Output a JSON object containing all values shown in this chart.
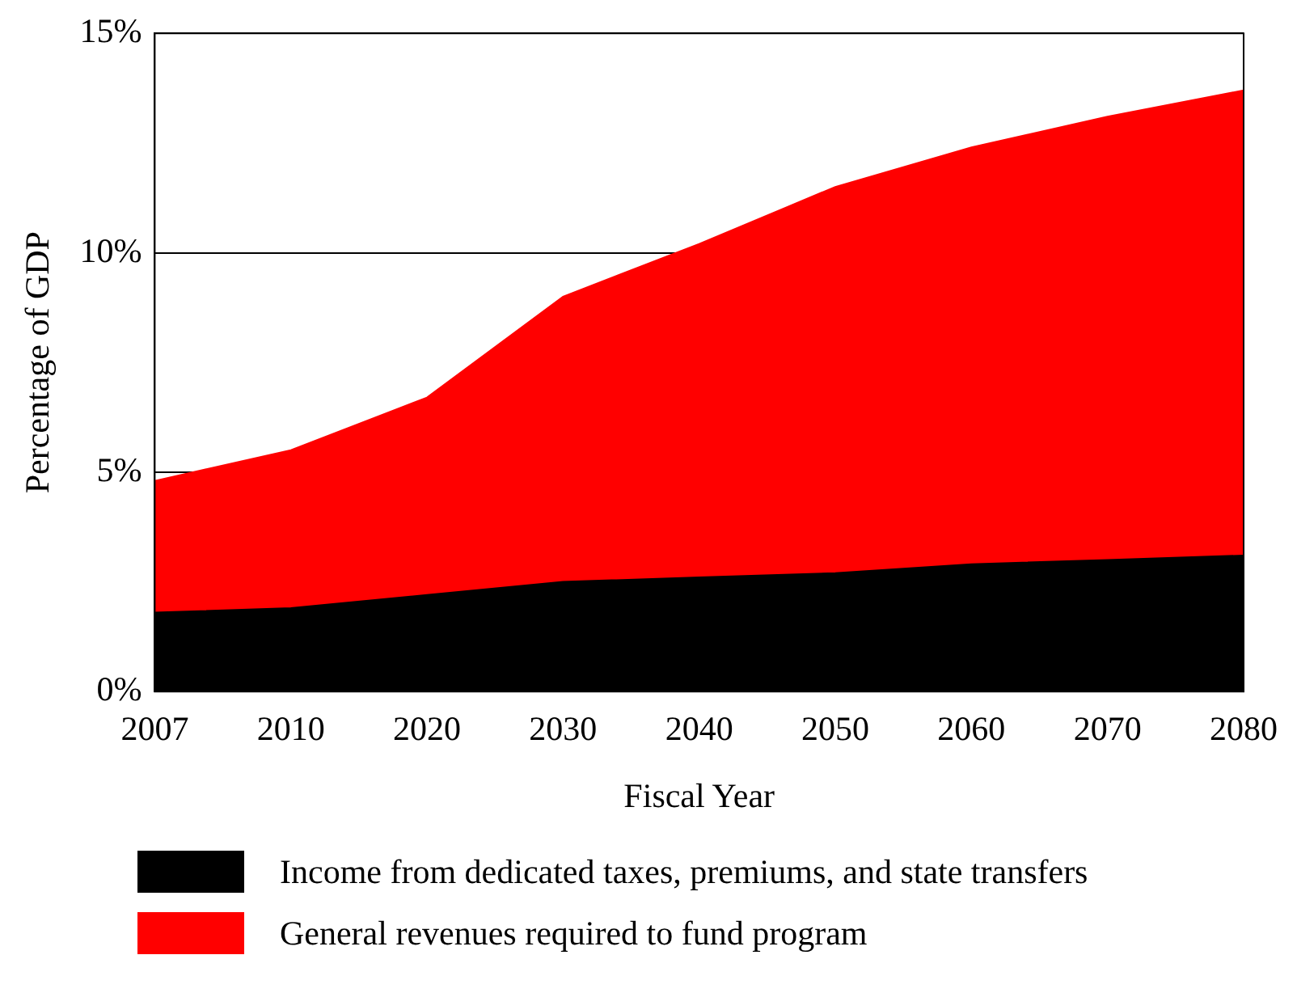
{
  "chart_data": {
    "type": "area",
    "stacked": true,
    "xlabel": "Fiscal Year",
    "ylabel": "Percentage of GDP",
    "categories": [
      "2007",
      "2010",
      "2020",
      "2030",
      "2040",
      "2050",
      "2060",
      "2070",
      "2080"
    ],
    "series": [
      {
        "name": "Income from dedicated taxes, premiums, and state transfers",
        "color": "#000000",
        "values": [
          1.8,
          1.9,
          2.2,
          2.5,
          2.6,
          2.7,
          2.9,
          3.0,
          3.1
        ]
      },
      {
        "name": "General revenues required to fund program",
        "color": "#ff0000",
        "values": [
          3.0,
          3.6,
          4.5,
          6.5,
          7.6,
          8.8,
          9.5,
          10.1,
          10.6
        ]
      }
    ],
    "ylim": [
      0,
      15
    ],
    "yticks": [
      {
        "value": 0,
        "label": "0%"
      },
      {
        "value": 5,
        "label": "5%"
      },
      {
        "value": 10,
        "label": "10%"
      },
      {
        "value": 15,
        "label": "15%"
      }
    ],
    "grid": "y",
    "legend": "bottom"
  }
}
